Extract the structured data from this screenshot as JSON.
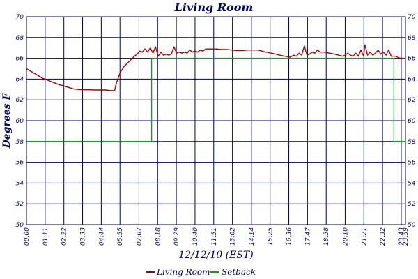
{
  "chart_data": {
    "type": "line",
    "title": "Living Room",
    "xlabel": "12/12/10 (EST)",
    "ylabel": "Degrees F",
    "ylim": [
      50,
      70
    ],
    "yticks": [
      50,
      52,
      54,
      56,
      58,
      60,
      62,
      64,
      66,
      68,
      70
    ],
    "xlim_minutes": [
      0,
      1439
    ],
    "xtick_labels": [
      "00:00",
      "01:11",
      "02:22",
      "03:33",
      "04:44",
      "05:55",
      "07:07",
      "08:18",
      "09:29",
      "10:40",
      "11:51",
      "13:02",
      "14:14",
      "15:25",
      "16:36",
      "17:47",
      "18:58",
      "20:10",
      "21:21",
      "22:32",
      "23:43",
      "23:59"
    ],
    "grid": true,
    "legend_position": "bottom-center",
    "series": [
      {
        "name": "Living Room",
        "color": "#aa0000",
        "points": [
          [
            "00:00",
            65.0
          ],
          [
            "00:20",
            64.7
          ],
          [
            "00:40",
            64.4
          ],
          [
            "01:00",
            64.1
          ],
          [
            "01:20",
            63.9
          ],
          [
            "01:40",
            63.7
          ],
          [
            "02:00",
            63.5
          ],
          [
            "02:20",
            63.35
          ],
          [
            "02:40",
            63.2
          ],
          [
            "03:00",
            63.05
          ],
          [
            "03:20",
            63.0
          ],
          [
            "03:40",
            62.97
          ],
          [
            "04:00",
            62.97
          ],
          [
            "04:20",
            62.95
          ],
          [
            "04:40",
            62.95
          ],
          [
            "05:00",
            62.95
          ],
          [
            "05:20",
            62.9
          ],
          [
            "05:35",
            62.9
          ],
          [
            "05:40",
            63.5
          ],
          [
            "05:55",
            64.6
          ],
          [
            "06:10",
            65.2
          ],
          [
            "06:30",
            65.7
          ],
          [
            "06:50",
            66.2
          ],
          [
            "07:00",
            66.4
          ],
          [
            "07:10",
            66.7
          ],
          [
            "07:20",
            66.6
          ],
          [
            "07:30",
            66.9
          ],
          [
            "07:40",
            66.6
          ],
          [
            "07:50",
            67.0
          ],
          [
            "08:00",
            66.5
          ],
          [
            "08:10",
            67.1
          ],
          [
            "08:20",
            66.2
          ],
          [
            "08:30",
            66.6
          ],
          [
            "08:40",
            66.3
          ],
          [
            "08:50",
            66.4
          ],
          [
            "09:00",
            66.3
          ],
          [
            "09:10",
            66.4
          ],
          [
            "09:20",
            67.1
          ],
          [
            "09:30",
            66.5
          ],
          [
            "09:40",
            66.6
          ],
          [
            "09:50",
            66.5
          ],
          [
            "10:00",
            66.6
          ],
          [
            "10:10",
            66.5
          ],
          [
            "10:20",
            66.8
          ],
          [
            "10:30",
            66.6
          ],
          [
            "10:40",
            66.7
          ],
          [
            "10:50",
            66.6
          ],
          [
            "11:00",
            66.8
          ],
          [
            "11:10",
            66.7
          ],
          [
            "11:20",
            66.9
          ],
          [
            "11:40",
            66.9
          ],
          [
            "12:00",
            66.9
          ],
          [
            "12:20",
            66.85
          ],
          [
            "12:40",
            66.85
          ],
          [
            "13:00",
            66.8
          ],
          [
            "13:20",
            66.75
          ],
          [
            "13:40",
            66.75
          ],
          [
            "14:00",
            66.8
          ],
          [
            "14:20",
            66.8
          ],
          [
            "14:40",
            66.8
          ],
          [
            "15:00",
            66.65
          ],
          [
            "15:20",
            66.55
          ],
          [
            "15:40",
            66.45
          ],
          [
            "16:00",
            66.3
          ],
          [
            "16:20",
            66.2
          ],
          [
            "16:40",
            66.1
          ],
          [
            "16:55",
            66.3
          ],
          [
            "17:05",
            66.2
          ],
          [
            "17:15",
            66.5
          ],
          [
            "17:25",
            66.3
          ],
          [
            "17:35",
            67.2
          ],
          [
            "17:45",
            66.3
          ],
          [
            "17:55",
            66.4
          ],
          [
            "18:05",
            66.6
          ],
          [
            "18:15",
            66.5
          ],
          [
            "18:25",
            66.8
          ],
          [
            "18:35",
            66.6
          ],
          [
            "18:50",
            66.6
          ],
          [
            "19:10",
            66.5
          ],
          [
            "19:30",
            66.4
          ],
          [
            "19:45",
            66.3
          ],
          [
            "20:00",
            66.2
          ],
          [
            "20:10",
            66.3
          ],
          [
            "20:20",
            66.5
          ],
          [
            "20:30",
            66.3
          ],
          [
            "20:40",
            66.2
          ],
          [
            "20:50",
            66.5
          ],
          [
            "21:00",
            66.2
          ],
          [
            "21:10",
            66.8
          ],
          [
            "21:20",
            66.2
          ],
          [
            "21:25",
            67.3
          ],
          [
            "21:35",
            66.3
          ],
          [
            "21:45",
            66.6
          ],
          [
            "21:55",
            66.3
          ],
          [
            "22:05",
            66.5
          ],
          [
            "22:15",
            66.8
          ],
          [
            "22:25",
            66.4
          ],
          [
            "22:35",
            66.6
          ],
          [
            "22:45",
            66.3
          ],
          [
            "22:55",
            66.8
          ],
          [
            "23:05",
            66.2
          ],
          [
            "23:20",
            66.2
          ],
          [
            "23:40",
            66.0
          ],
          [
            "23:59",
            66.0
          ]
        ]
      },
      {
        "name": "Setback",
        "color": "#00aa00",
        "points": [
          [
            "00:00",
            58
          ],
          [
            "07:55",
            58
          ],
          [
            "07:55",
            66
          ],
          [
            "23:15",
            66
          ],
          [
            "23:15",
            58
          ],
          [
            "23:59",
            58
          ]
        ]
      }
    ]
  }
}
